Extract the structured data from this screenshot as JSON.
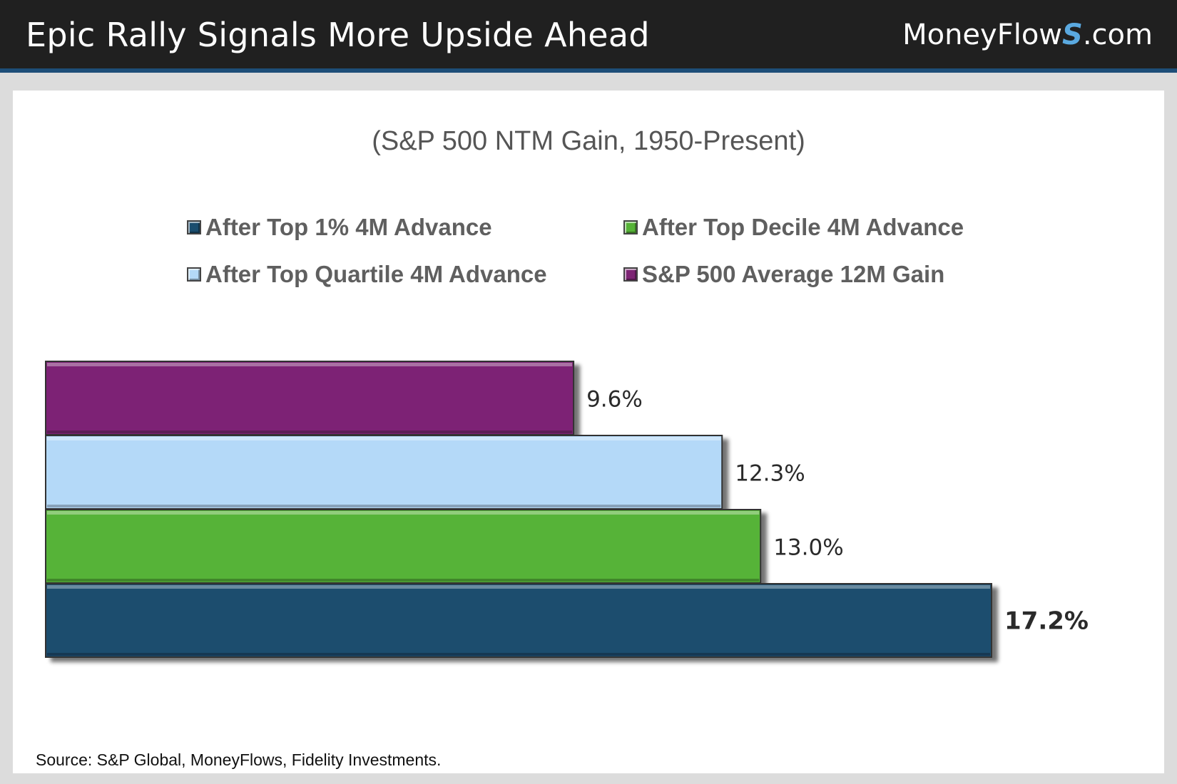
{
  "header": {
    "title": "Epic Rally Signals More Upside Ahead",
    "brand_prefix": "MoneyFlow",
    "brand_s": "S",
    "brand_suffix": ".com"
  },
  "footer": {
    "source": "Source: S&P Global, MoneyFlows, Fidelity Investments."
  },
  "chart_data": {
    "type": "bar",
    "orientation": "horizontal",
    "title": "(S&P 500 NTM Gain, 1950-Present)",
    "legend_placement": "top",
    "grid": false,
    "xlim": [
      0,
      17.2
    ],
    "series": [
      {
        "name": "After Top 1% 4M Advance",
        "value": 17.2,
        "label": "17.2%",
        "color": "#1a4d6e",
        "bold_label": true
      },
      {
        "name": "After Top Decile 4M Advance",
        "value": 13.0,
        "label": "13.0%",
        "color": "#56b337",
        "bold_label": false
      },
      {
        "name": "After Top Quartile 4M Advance",
        "value": 12.3,
        "label": "12.3%",
        "color": "#b4d9f8",
        "bold_label": false
      },
      {
        "name": "S&P 500 Average 12M Gain",
        "value": 9.6,
        "label": "9.6%",
        "color": "#7d2474",
        "bold_label": false
      }
    ],
    "bar_order_top_to_bottom": [
      "S&P 500 Average 12M Gain",
      "After Top Quartile 4M Advance",
      "After Top Decile 4M Advance",
      "After Top 1% 4M Advance"
    ]
  }
}
